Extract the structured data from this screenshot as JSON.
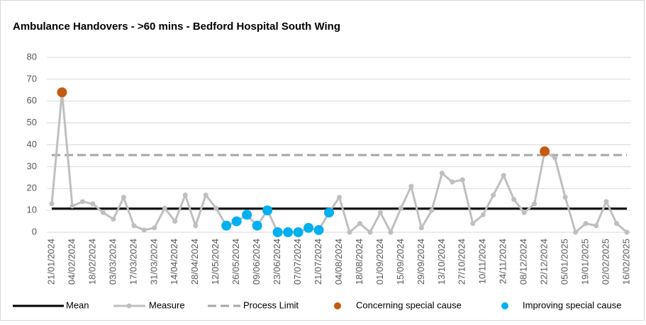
{
  "chart_data": {
    "type": "line",
    "title": "Ambulance Handovers - >60 mins - Bedford Hospital South Wing",
    "categories": [
      "21/01/2024",
      null,
      "04/02/2024",
      null,
      "18/02/2024",
      null,
      "03/03/2024",
      null,
      "17/03/2024",
      null,
      "31/03/2024",
      null,
      "14/04/2024",
      null,
      "28/04/2024",
      null,
      "12/05/2024",
      null,
      "26/05/2024",
      null,
      "09/06/2024",
      null,
      "23/06/2024",
      null,
      "07/07/2024",
      null,
      "21/07/2024",
      null,
      "04/08/2024",
      null,
      "18/08/2024",
      null,
      "01/09/2024",
      null,
      "15/09/2024",
      null,
      "29/09/2024",
      null,
      "13/10/2024",
      null,
      "27/10/2024",
      null,
      "10/11/2024",
      null,
      "24/11/2024",
      null,
      "08/12/2024",
      null,
      "22/12/2024",
      null,
      "05/01/2025",
      null,
      "19/01/2025",
      null,
      "02/02/2025",
      null,
      "16/02/2025"
    ],
    "series": [
      {
        "name": "Mean",
        "color": "#000000",
        "value": 10.8
      },
      {
        "name": "Measure",
        "color": "#bfbfbf",
        "values": [
          13,
          64,
          12,
          14,
          13,
          9,
          6,
          16,
          3,
          1,
          2,
          11,
          5,
          17,
          3,
          17,
          11,
          3,
          5,
          8,
          3,
          10,
          0,
          0,
          0,
          2,
          1,
          9,
          16,
          0,
          4,
          0,
          9,
          0,
          11,
          21,
          2,
          10,
          27,
          23,
          24,
          4,
          8,
          17,
          26,
          15,
          9,
          13,
          37,
          34,
          16,
          0,
          4,
          3,
          14,
          4,
          0
        ]
      },
      {
        "name": "Process Limit",
        "color": "#a6a6a6",
        "value": 35.3
      },
      {
        "name": "Concerning special cause",
        "color": "#c55a11",
        "values": [
          null,
          64,
          null,
          null,
          null,
          null,
          null,
          null,
          null,
          null,
          null,
          null,
          null,
          null,
          null,
          null,
          null,
          null,
          null,
          null,
          null,
          null,
          null,
          null,
          null,
          null,
          null,
          null,
          null,
          null,
          null,
          null,
          null,
          null,
          null,
          null,
          null,
          null,
          null,
          null,
          null,
          null,
          null,
          null,
          null,
          null,
          null,
          null,
          37,
          null,
          null,
          null,
          null,
          null,
          null,
          null,
          null
        ]
      },
      {
        "name": "Improving special cause",
        "color": "#00b0f0",
        "values": [
          null,
          null,
          null,
          null,
          null,
          null,
          null,
          null,
          null,
          null,
          null,
          null,
          null,
          null,
          null,
          null,
          null,
          3,
          5,
          8,
          3,
          10,
          0,
          0,
          0,
          2,
          1,
          9,
          null,
          null,
          null,
          null,
          null,
          null,
          null,
          null,
          null,
          null,
          null,
          null,
          null,
          null,
          null,
          null,
          null,
          null,
          null,
          null,
          null,
          null,
          null,
          null,
          null,
          null,
          null,
          null,
          null
        ]
      }
    ],
    "ylim": [
      0,
      80
    ],
    "yticks": [
      0,
      10,
      20,
      30,
      40,
      50,
      60,
      70,
      80
    ],
    "grid": true
  }
}
